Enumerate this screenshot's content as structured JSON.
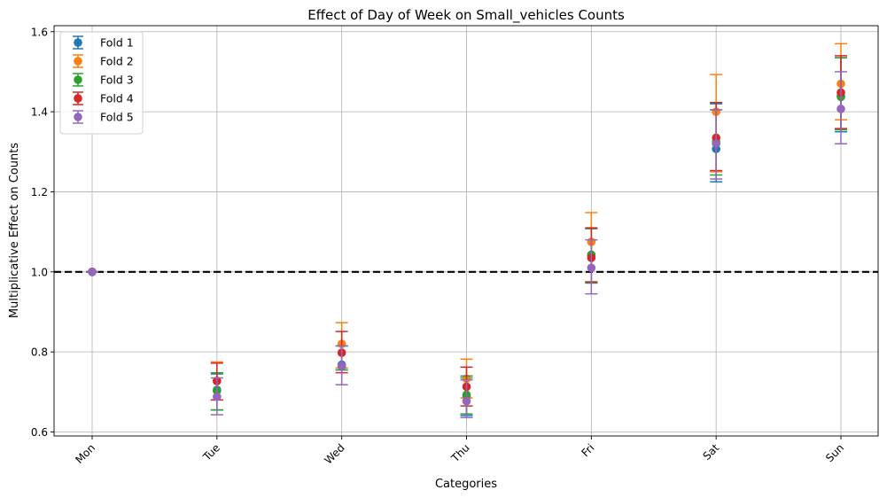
{
  "chart_data": {
    "type": "scatter",
    "title": "Effect of Day of Week on Small_vehicles Counts",
    "xlabel": "Categories",
    "ylabel": "Multiplicative Effect on Counts",
    "categories": [
      "Mon",
      "Tue",
      "Wed",
      "Thu",
      "Fri",
      "Sat",
      "Sun"
    ],
    "ylim": [
      0.59,
      1.615
    ],
    "yticks": [
      0.6,
      0.8,
      1.0,
      1.2,
      1.4,
      1.6
    ],
    "ytick_labels": [
      "0.6",
      "0.8",
      "1.0",
      "1.2",
      "1.4",
      "1.6"
    ],
    "grid": true,
    "legend_position": "top-left",
    "reference_line": {
      "y": 1.0,
      "style": "dashed",
      "color": "#000000"
    },
    "series": [
      {
        "name": "Fold 1",
        "color": "#1f77b4",
        "values": [
          1.0,
          0.705,
          0.768,
          0.688,
          1.04,
          1.307,
          1.44
        ],
        "lower": [
          1.0,
          0.655,
          0.755,
          0.641,
          0.972,
          1.225,
          1.35
        ],
        "upper": [
          1.0,
          0.745,
          0.815,
          0.735,
          1.108,
          1.42,
          1.535
        ]
      },
      {
        "name": "Fold 2",
        "color": "#ff7f0e",
        "values": [
          1.0,
          0.728,
          0.82,
          0.733,
          1.075,
          1.4,
          1.47
        ],
        "lower": [
          1.0,
          0.68,
          0.76,
          0.685,
          0.975,
          1.25,
          1.38
        ],
        "upper": [
          1.0,
          0.775,
          0.873,
          0.782,
          1.148,
          1.493,
          1.57
        ]
      },
      {
        "name": "Fold 3",
        "color": "#2ca02c",
        "values": [
          1.0,
          0.703,
          0.765,
          0.693,
          1.043,
          1.325,
          1.437
        ],
        "lower": [
          1.0,
          0.655,
          0.755,
          0.645,
          0.973,
          1.242,
          1.355
        ],
        "upper": [
          1.0,
          0.748,
          0.815,
          0.74,
          1.108,
          1.405,
          1.535
        ]
      },
      {
        "name": "Fold 4",
        "color": "#d62728",
        "values": [
          1.0,
          0.727,
          0.798,
          0.713,
          1.035,
          1.335,
          1.448
        ],
        "lower": [
          1.0,
          0.68,
          0.748,
          0.665,
          0.975,
          1.253,
          1.358
        ],
        "upper": [
          1.0,
          0.772,
          0.851,
          0.762,
          1.11,
          1.423,
          1.54
        ]
      },
      {
        "name": "Fold 5",
        "color": "#9467bd",
        "values": [
          1.0,
          0.688,
          0.765,
          0.677,
          1.01,
          1.32,
          1.407
        ],
        "lower": [
          1.0,
          0.643,
          0.718,
          0.636,
          0.945,
          1.232,
          1.32
        ],
        "upper": [
          1.0,
          0.735,
          0.815,
          0.73,
          1.08,
          1.405,
          1.5
        ]
      }
    ]
  }
}
